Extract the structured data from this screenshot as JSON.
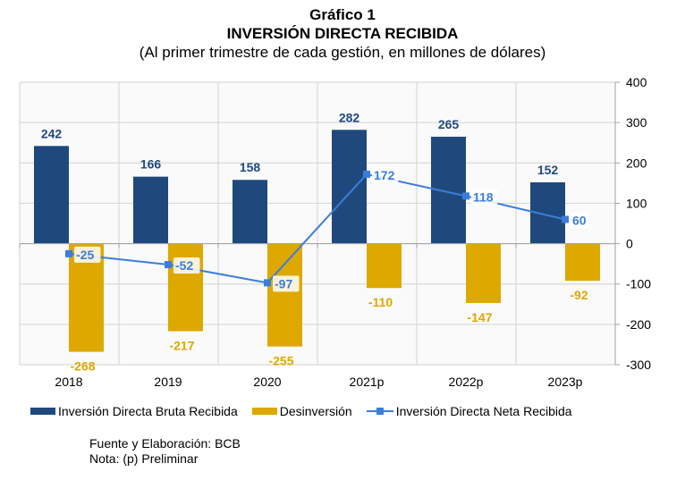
{
  "header": {
    "figure_label": "Gráfico 1",
    "title": "INVERSIÓN DIRECTA RECIBIDA",
    "subtitle": "(Al primer trimestre de cada gestión, en millones de dólares)"
  },
  "notes": {
    "source": "Fuente y Elaboración: BCB",
    "note": "Nota: (p) Preliminar"
  },
  "colors": {
    "bruta": "#1F497D",
    "desinversion": "#DDA800",
    "neta": "#3C7DD9",
    "grid": "#D9D9D9",
    "plot_bg": "#FAFAFA"
  },
  "chart_data": {
    "type": "bar",
    "title": "INVERSIÓN DIRECTA RECIBIDA",
    "subtitle": "(Al primer trimestre de cada gestión, en millones de dólares)",
    "xlabel": "",
    "ylabel": "",
    "categories": [
      "2018",
      "2019",
      "2020",
      "2021p",
      "2022p",
      "2023p"
    ],
    "series": [
      {
        "name": "Inversión Directa Bruta Recibida",
        "type": "bar",
        "values": [
          242,
          166,
          158,
          282,
          265,
          152
        ]
      },
      {
        "name": "Desinversión",
        "type": "bar",
        "values": [
          -268,
          -217,
          -255,
          -110,
          -147,
          -92
        ]
      },
      {
        "name": "Inversión Directa Neta Recibida",
        "type": "line",
        "values": [
          -25,
          -52,
          -97,
          172,
          118,
          60
        ]
      }
    ],
    "ylim": [
      -300,
      400
    ],
    "yticks": [
      400,
      300,
      200,
      100,
      0,
      -100,
      -200,
      -300
    ],
    "y_axis_side": "right",
    "grid": true,
    "legend_position": "bottom"
  }
}
